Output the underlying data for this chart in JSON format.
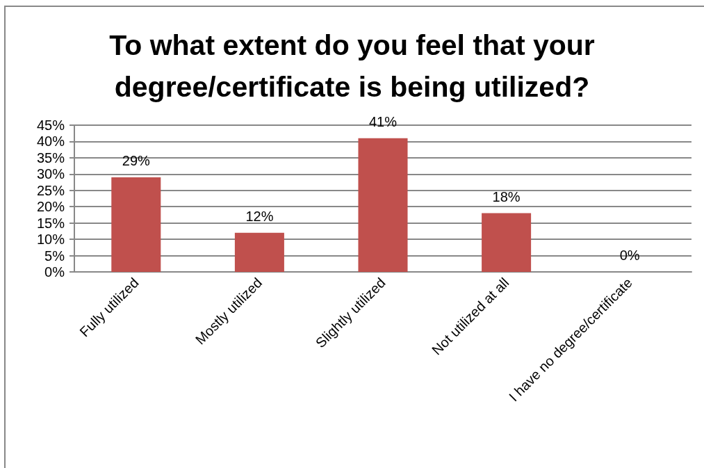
{
  "chart_data": {
    "type": "bar",
    "title": "To what extent do you feel that your\ndegree/certificate is being utilized?",
    "categories": [
      "Fully utilized",
      "Mostly utilized",
      "Slightly utilized",
      "Not utilized at all",
      "I have no degree/certificate"
    ],
    "values": [
      29,
      12,
      41,
      18,
      0
    ],
    "value_labels": [
      "29%",
      "12%",
      "41%",
      "18%",
      "0%"
    ],
    "color": "#c0504d",
    "ylim": [
      0,
      45
    ],
    "yticks": [
      {
        "value": 0,
        "label": "0%"
      },
      {
        "value": 5,
        "label": "5%"
      },
      {
        "value": 10,
        "label": "10%"
      },
      {
        "value": 15,
        "label": "15%"
      },
      {
        "value": 20,
        "label": "20%"
      },
      {
        "value": 25,
        "label": "25%"
      },
      {
        "value": 30,
        "label": "30%"
      },
      {
        "value": 35,
        "label": "35%"
      },
      {
        "value": 40,
        "label": "40%"
      },
      {
        "value": 45,
        "label": "45%"
      }
    ],
    "grid": "y"
  }
}
